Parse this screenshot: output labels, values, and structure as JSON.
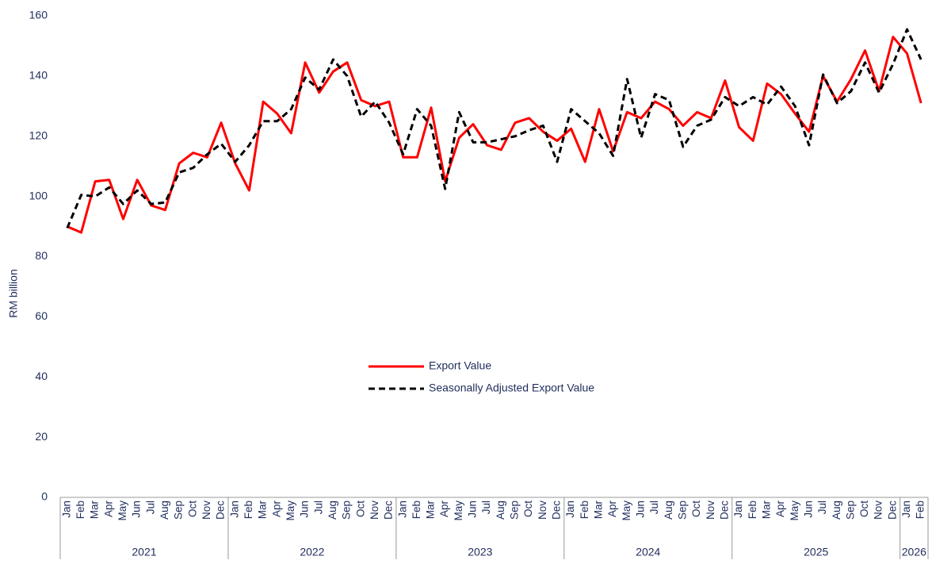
{
  "chart_data": {
    "type": "line",
    "y_label": "RM billion",
    "categories": [
      "Jan",
      "Feb",
      "Mar",
      "Apr",
      "May",
      "Jun",
      "Jul",
      "Aug",
      "Sep",
      "Oct",
      "Nov",
      "Dec",
      "Jan",
      "Feb",
      "Mar",
      "Apr",
      "May",
      "Jun",
      "Jul",
      "Aug",
      "Sep",
      "Oct",
      "Nov",
      "Dec",
      "Jan",
      "Feb",
      "Mar",
      "Apr",
      "May",
      "Jun",
      "Jul",
      "Aug",
      "Sep",
      "Oct",
      "Nov",
      "Dec",
      "Jan",
      "Feb",
      "Mar",
      "Apr",
      "May",
      "Jun",
      "Jul",
      "Aug",
      "Sep",
      "Oct",
      "Nov",
      "Dec",
      "Jan",
      "Feb",
      "Mar",
      "Apr",
      "May",
      "Jun",
      "Jul",
      "Aug",
      "Sep",
      "Oct",
      "Nov",
      "Dec",
      "Jan",
      "Feb"
    ],
    "years": [
      "2021",
      "2022",
      "2023",
      "2024",
      "2025",
      "2026"
    ],
    "series": [
      {
        "name": "Export Value",
        "color": "#ff0000",
        "dash": false,
        "values": [
          90,
          88,
          105,
          105.5,
          92.5,
          105.5,
          97,
          95.5,
          111,
          114.5,
          113,
          124.5,
          111,
          102,
          131.5,
          127.5,
          121,
          144.5,
          134.5,
          141.5,
          144.5,
          132,
          130,
          131.5,
          113,
          113,
          129.5,
          105,
          119.5,
          124,
          117,
          115.5,
          124.5,
          126,
          121.5,
          118.5,
          122.5,
          111.5,
          129,
          115,
          128,
          126,
          131.5,
          129,
          123.5,
          128,
          126,
          138.5,
          123,
          118.5,
          137.5,
          134,
          127.5,
          121.5,
          140,
          131.5,
          139,
          148.5,
          135,
          153,
          147.5,
          131
        ]
      },
      {
        "name": "Seasonally Adjusted Export Value",
        "color": "#000000",
        "dash": true,
        "values": [
          89.5,
          100.5,
          100,
          103,
          97.5,
          102,
          97.5,
          98,
          108,
          109.5,
          114,
          117.5,
          111.5,
          117,
          125,
          125,
          129,
          139.5,
          135.5,
          145.5,
          140,
          126.5,
          131.5,
          124.5,
          114,
          129,
          123.5,
          102.5,
          128,
          118,
          118,
          119,
          120,
          122,
          123.5,
          111.5,
          129,
          125,
          121,
          113.5,
          139,
          119.5,
          134,
          132,
          116.5,
          123.5,
          125.5,
          133,
          130,
          133,
          130.5,
          136.5,
          130,
          117,
          140.5,
          131,
          135,
          144.5,
          134.5,
          144,
          155.5,
          145.5
        ]
      }
    ],
    "ylim": [
      0,
      160
    ],
    "yticks": [
      0,
      20,
      40,
      60,
      80,
      100,
      120,
      140,
      160
    ],
    "grid": false
  }
}
